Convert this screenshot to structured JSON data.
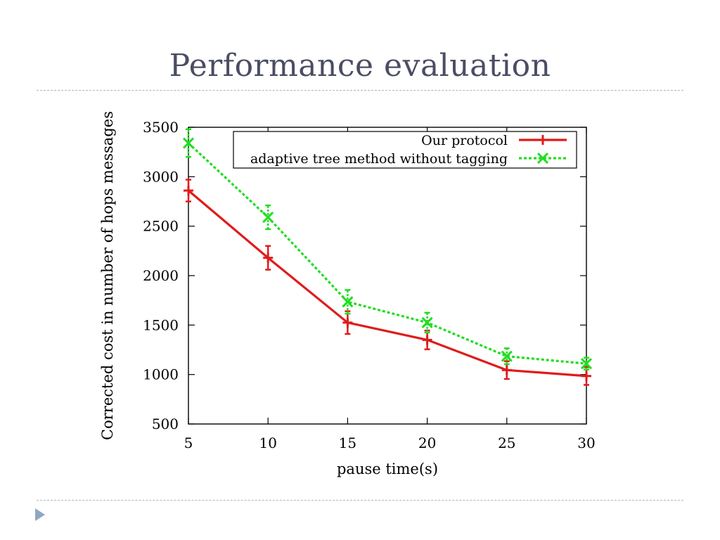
{
  "slide": {
    "title": "Performance evaluation"
  },
  "colors": {
    "title": "#4a4d63",
    "divider": "#a9b5c6",
    "bullet": "#8ea7c2",
    "series_red": "#e01b1b",
    "series_green": "#22dd22"
  },
  "chart_data": {
    "type": "line",
    "xlabel": "pause time(s)",
    "ylabel": "Corrected cost in number of hops messages",
    "xlim": [
      5,
      30
    ],
    "ylim": [
      500,
      3500
    ],
    "xticks": [
      5,
      10,
      15,
      20,
      25,
      30
    ],
    "yticks": [
      500,
      1000,
      1500,
      2000,
      2500,
      3000,
      3500
    ],
    "grid": false,
    "legend_position": "top-right",
    "x": [
      5,
      10,
      15,
      20,
      25,
      30
    ],
    "series": [
      {
        "name": "Our protocol",
        "values": [
          2860,
          2180,
          1525,
          1350,
          1045,
          985
        ],
        "errors": [
          110,
          120,
          115,
          95,
          90,
          90
        ],
        "color": "#e01b1b",
        "marker": "plus",
        "line": "solid"
      },
      {
        "name": "adaptive tree method without tagging",
        "values": [
          3340,
          2590,
          1735,
          1525,
          1185,
          1110
        ],
        "errors": [
          140,
          120,
          120,
          100,
          80,
          60
        ],
        "color": "#22dd22",
        "marker": "x",
        "line": "dotted"
      }
    ]
  }
}
